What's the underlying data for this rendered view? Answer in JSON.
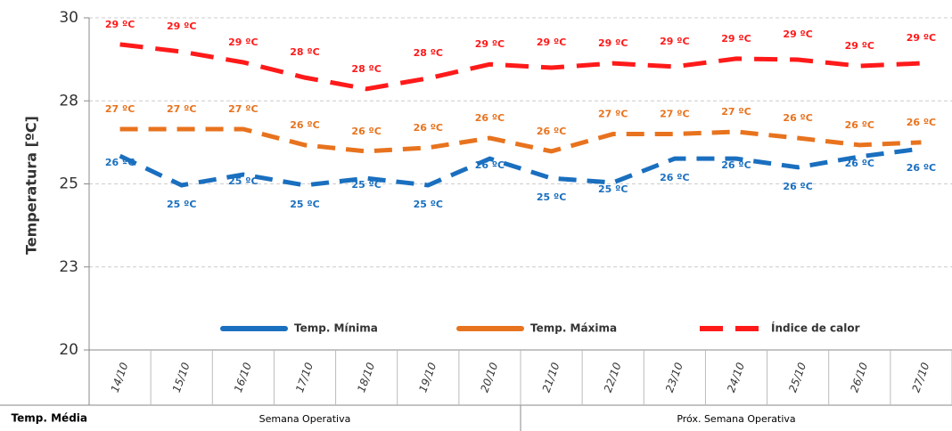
{
  "chart_data": {
    "type": "line",
    "y_label": "Temperatura [ºC]",
    "categories": [
      "14/10",
      "15/10",
      "16/10",
      "17/10",
      "18/10",
      "19/10",
      "20/10",
      "21/10",
      "22/10",
      "23/10",
      "24/10",
      "25/10",
      "26/10",
      "27/10"
    ],
    "ylim": [
      20,
      30
    ],
    "yticks": [
      20,
      {
        "value": 22.5,
        "label": "23"
      },
      25,
      {
        "value": 27.5,
        "label": "28"
      },
      30
    ],
    "grid": true,
    "series": [
      {
        "name": "Temp. Mínima",
        "color": "#1a6fbf",
        "dashed": false,
        "values": [
          25.84,
          24.96,
          25.28,
          24.96,
          25.17,
          24.96,
          25.76,
          25.17,
          25.04,
          25.76,
          25.76,
          25.5,
          25.82,
          26.06
        ],
        "value_labels": [
          "26 ºC",
          "25 ºC",
          "25 ºC",
          "25 ºC",
          "25 ºC",
          "25 ºC",
          "26 ºC",
          "25 ºC",
          "25 ºC",
          "26 ºC",
          "26 ºC",
          "26 ºC",
          "26 ºC",
          "26 ºC"
        ]
      },
      {
        "name": "Temp. Máxima",
        "color": "#e8731e",
        "dashed": false,
        "values": [
          26.65,
          26.65,
          26.65,
          26.17,
          25.98,
          26.09,
          26.38,
          25.98,
          26.5,
          26.5,
          26.57,
          26.38,
          26.17,
          26.25
        ],
        "value_labels": [
          "27 ºC",
          "27 ºC",
          "27 ºC",
          "26 ºC",
          "26 ºC",
          "26 ºC",
          "26 ºC",
          "26 ºC",
          "27 ºC",
          "27 ºC",
          "27 ºC",
          "26 ºC",
          "26 ºC",
          "26 ºC"
        ]
      },
      {
        "name": "Índice de calor",
        "color": "#ff1a1a",
        "dashed": true,
        "values": [
          29.2,
          28.98,
          28.66,
          28.2,
          27.86,
          28.18,
          28.6,
          28.5,
          28.63,
          28.53,
          28.77,
          28.74,
          28.55,
          28.63
        ],
        "value_labels": [
          "29 ºC",
          "29 ºC",
          "29 ºC",
          "28 ºC",
          "28 ºC",
          "28 ºC",
          "29 ºC",
          "29 ºC",
          "29 ºC",
          "29 ºC",
          "29 ºC",
          "29 ºC",
          "29 ºC",
          "29 ºC"
        ]
      }
    ],
    "table_row_label": "Temp. Média",
    "groups": [
      "Semana Operativa",
      "Próx. Semana Operativa"
    ]
  }
}
